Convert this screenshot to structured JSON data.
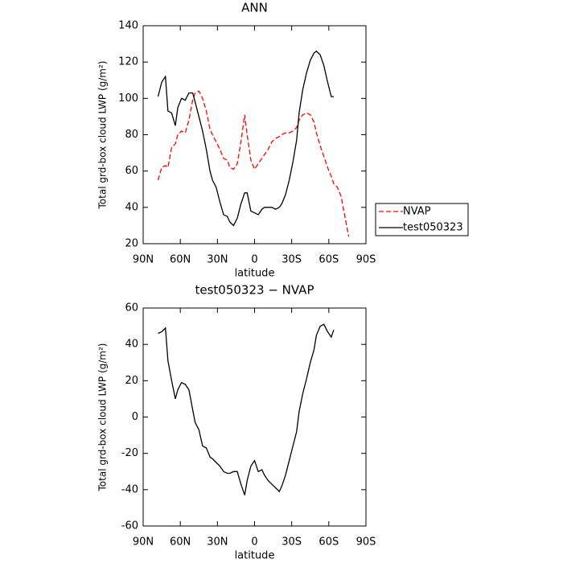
{
  "chart_data": [
    {
      "type": "line",
      "title": "ANN",
      "xlabel": "latitude",
      "ylabel": "Total grd-box cloud LWP (g/m²)",
      "xlim": [
        90,
        -90
      ],
      "xticks": [
        {
          "value": 90,
          "label": "90N"
        },
        {
          "value": 60,
          "label": "60N"
        },
        {
          "value": 30,
          "label": "30N"
        },
        0,
        {
          "value": -30,
          "label": "30S"
        },
        {
          "value": -60,
          "label": "60S"
        },
        {
          "value": -90,
          "label": "90S"
        }
      ],
      "ylim": [
        20,
        140
      ],
      "yticks": [
        20,
        40,
        60,
        80,
        100,
        120,
        140
      ],
      "legend": "right",
      "series": [
        {
          "name": "NVAP",
          "color": "#ff0000",
          "style": "dashed",
          "x": [
            78,
            75,
            72,
            70,
            67,
            64,
            62,
            59,
            56,
            53,
            50,
            48,
            45,
            42,
            39,
            36,
            34,
            31,
            28,
            25,
            22,
            20,
            17,
            14,
            11,
            8,
            6,
            3,
            0,
            -3,
            -6,
            -8,
            -11,
            -14,
            -17,
            -20,
            -22,
            -25,
            -28,
            -31,
            -34,
            -36,
            -39,
            -42,
            -45,
            -48,
            -50,
            -53,
            -56,
            -59,
            -62,
            -64,
            -67,
            -70,
            -73,
            -76
          ],
          "values": [
            55,
            62,
            63,
            62,
            73,
            75,
            80,
            82,
            81,
            88,
            99,
            103,
            104,
            100,
            93,
            83,
            80,
            76,
            72,
            67,
            66,
            62,
            61,
            64,
            76,
            91,
            80,
            66,
            61,
            64,
            67,
            69,
            72,
            76,
            78,
            79,
            80,
            81,
            81,
            82,
            84,
            88,
            91,
            92,
            91,
            87,
            81,
            74,
            68,
            62,
            57,
            53,
            51,
            46,
            35,
            24
          ]
        },
        {
          "name": "test050323",
          "color": "#000000",
          "style": "solid",
          "x": [
            78,
            75,
            72,
            70,
            67,
            64,
            62,
            59,
            56,
            53,
            50,
            48,
            45,
            42,
            39,
            36,
            34,
            31,
            28,
            25,
            22,
            20,
            17,
            14,
            11,
            8,
            6,
            3,
            0,
            -3,
            -6,
            -8,
            -11,
            -14,
            -17,
            -20,
            -22,
            -25,
            -28,
            -31,
            -34,
            -36,
            -39,
            -42,
            -45,
            -48,
            -50,
            -53,
            -56,
            -59,
            -62,
            -64
          ],
          "values": [
            101,
            109,
            112,
            93,
            92,
            85,
            95,
            100,
            99,
            103,
            103,
            98,
            90,
            82,
            72,
            60,
            55,
            51,
            43,
            36,
            35,
            32,
            30,
            34,
            42,
            48,
            48,
            38,
            37,
            36,
            39,
            40,
            40,
            40,
            39,
            40,
            42,
            47,
            55,
            65,
            77,
            92,
            105,
            114,
            121,
            125,
            126,
            124,
            118,
            109,
            101,
            101
          ]
        }
      ]
    },
    {
      "type": "line",
      "title": "test050323 − NVAP",
      "xlabel": "latitude",
      "ylabel": "Total grd-box cloud LWP (g/m²)",
      "xlim": [
        90,
        -90
      ],
      "xticks": [
        {
          "value": 90,
          "label": "90N"
        },
        {
          "value": 60,
          "label": "60N"
        },
        {
          "value": 30,
          "label": "30N"
        },
        0,
        {
          "value": -30,
          "label": "30S"
        },
        {
          "value": -60,
          "label": "60S"
        },
        {
          "value": -90,
          "label": "90S"
        }
      ],
      "ylim": [
        -60,
        60
      ],
      "yticks": [
        -60,
        -40,
        -20,
        0,
        20,
        40,
        60
      ],
      "series": [
        {
          "color": "#000000",
          "style": "solid",
          "x": [
            78,
            75,
            72,
            70,
            67,
            64,
            62,
            59,
            56,
            53,
            50,
            48,
            45,
            42,
            39,
            36,
            34,
            31,
            28,
            25,
            22,
            20,
            17,
            14,
            11,
            8,
            6,
            3,
            0,
            -3,
            -6,
            -8,
            -11,
            -14,
            -17,
            -20,
            -22,
            -25,
            -28,
            -31,
            -34,
            -36,
            -39,
            -42,
            -45,
            -48,
            -50,
            -53,
            -56,
            -59,
            -62,
            -64
          ],
          "values": [
            46,
            47,
            49,
            31,
            20,
            10,
            15,
            19,
            18,
            15,
            4,
            -3,
            -7,
            -16,
            -17,
            -22,
            -23,
            -25,
            -27,
            -30,
            -31,
            -31,
            -30,
            -30,
            -37,
            -43,
            -35,
            -27,
            -24,
            -30,
            -29,
            -32,
            -35,
            -37,
            -39,
            -41,
            -38,
            -32,
            -24,
            -16,
            -8,
            3,
            13,
            21,
            30,
            37,
            45,
            50,
            51,
            47,
            44,
            48
          ]
        }
      ]
    }
  ]
}
